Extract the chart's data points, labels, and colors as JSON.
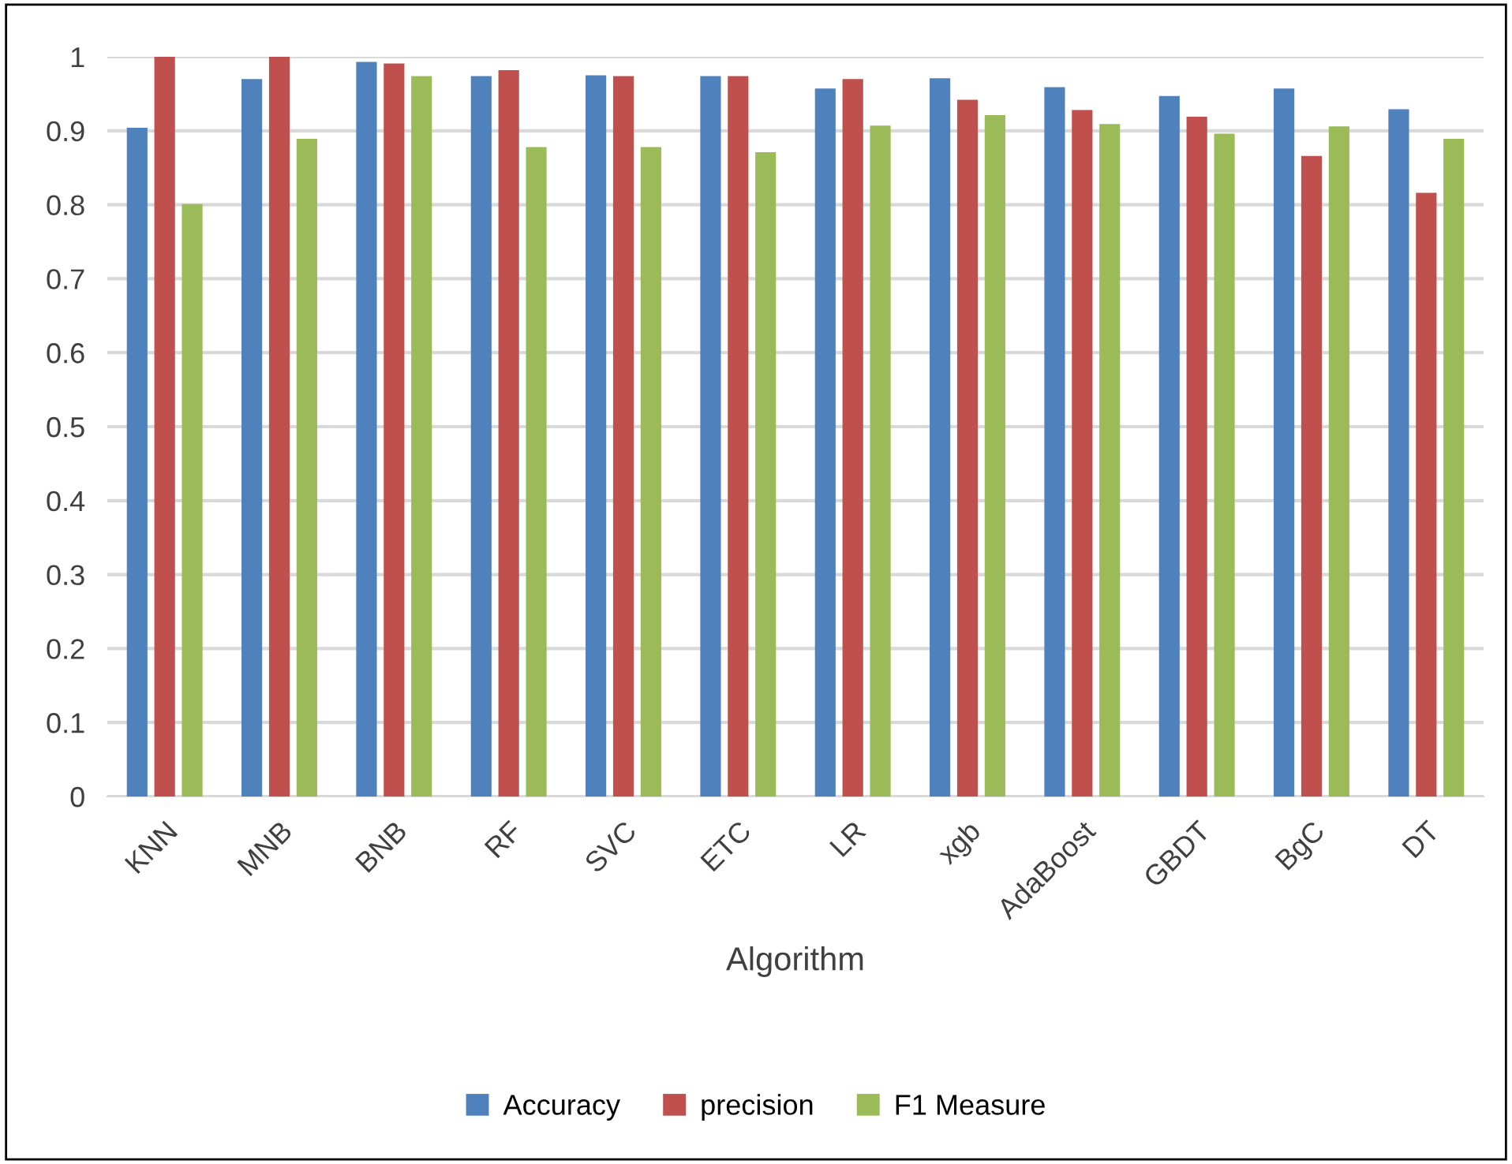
{
  "chart_data": {
    "type": "bar",
    "xlabel": "Algorithm",
    "categories": [
      "KNN",
      "MNB",
      "BNB",
      "RF",
      "SVC",
      "ETC",
      "LR",
      "xgb",
      "AdaBoost",
      "GBDT",
      "BgC",
      "DT"
    ],
    "series": [
      {
        "name": "Accuracy",
        "color": "#4f81bd",
        "values": [
          0.904,
          0.97,
          0.993,
          0.974,
          0.975,
          0.974,
          0.957,
          0.971,
          0.959,
          0.947,
          0.957,
          0.929
        ]
      },
      {
        "name": "precision",
        "color": "#c0504d",
        "values": [
          1.0,
          1.0,
          0.991,
          0.982,
          0.974,
          0.974,
          0.97,
          0.942,
          0.928,
          0.919,
          0.866,
          0.816
        ]
      },
      {
        "name": "F1 Measure",
        "color": "#9bbb59",
        "values": [
          0.801,
          0.889,
          0.974,
          0.878,
          0.878,
          0.871,
          0.907,
          0.921,
          0.909,
          0.896,
          0.906,
          0.889
        ]
      }
    ],
    "ylim": [
      0,
      1
    ],
    "yticks": [
      0,
      0.1,
      0.2,
      0.3,
      0.4,
      0.5,
      0.6,
      0.7,
      0.8,
      0.9,
      1
    ],
    "grid": "y",
    "legend": "bottom"
  }
}
